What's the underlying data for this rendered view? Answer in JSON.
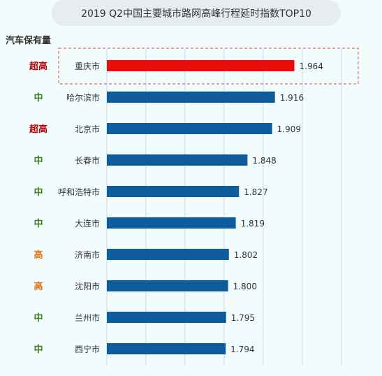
{
  "title": "2019 Q2中国主要城市路网高峰行程延时指数TOP10",
  "side_label": "汽车保有量",
  "colors": {
    "highlight": "#e80c0c",
    "bar": "#0d5c9e",
    "level_chaogao": "#b5060a",
    "level_gao": "#e07818",
    "level_zhong": "#3f7d22",
    "grid": "#c7d6de",
    "dash": "#d94a4a"
  },
  "chart_data": {
    "type": "bar",
    "orientation": "horizontal",
    "title": "2019 Q2中国主要城市路网高峰行程延时指数TOP10",
    "categories": [
      "重庆市",
      "哈尔滨市",
      "北京市",
      "长春市",
      "呼和浩特市",
      "大连市",
      "济南市",
      "沈阳市",
      "兰州市",
      "西宁市"
    ],
    "values": [
      1.964,
      1.916,
      1.909,
      1.848,
      1.827,
      1.819,
      1.802,
      1.8,
      1.795,
      1.794
    ],
    "value_labels": [
      "1.964",
      "1.916",
      "1.909",
      "1.848",
      "1.827",
      "1.819",
      "1.802",
      "1.800",
      "1.795",
      "1.794"
    ],
    "levels": [
      "超高",
      "中",
      "超高",
      "中",
      "中",
      "中",
      "高",
      "高",
      "中",
      "中"
    ],
    "highlighted_index": 0,
    "grid": true
  }
}
